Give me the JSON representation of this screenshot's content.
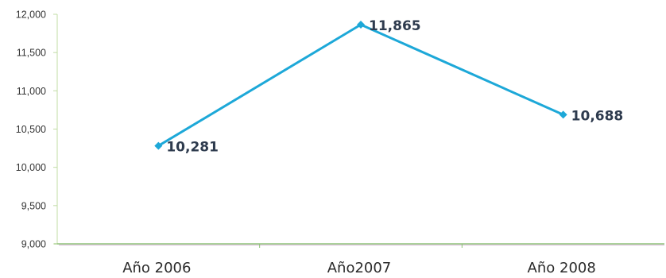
{
  "chart_data": {
    "type": "line",
    "categories": [
      "Año 2006",
      "Año2007",
      "Año 2008"
    ],
    "series": [
      {
        "values": [
          10281,
          11865,
          10688
        ]
      }
    ],
    "data_labels": [
      "10,281",
      "11,865",
      "10,688"
    ],
    "y_ticks": [
      9000,
      9500,
      10000,
      10500,
      11000,
      11500,
      12000
    ],
    "y_tick_labels": [
      "9,000",
      "9,500",
      "10,000",
      "10,500",
      "11,000",
      "11,500",
      "12,000"
    ],
    "ylim": [
      9000,
      12000
    ],
    "title": "",
    "xlabel": "",
    "ylabel": "",
    "grid": false,
    "legend": "none",
    "colors": {
      "line": "#1da8d8",
      "y_axis": "#c2dca6",
      "x_axis": "#8fc27a",
      "baseline": "#c8a0c8"
    }
  }
}
